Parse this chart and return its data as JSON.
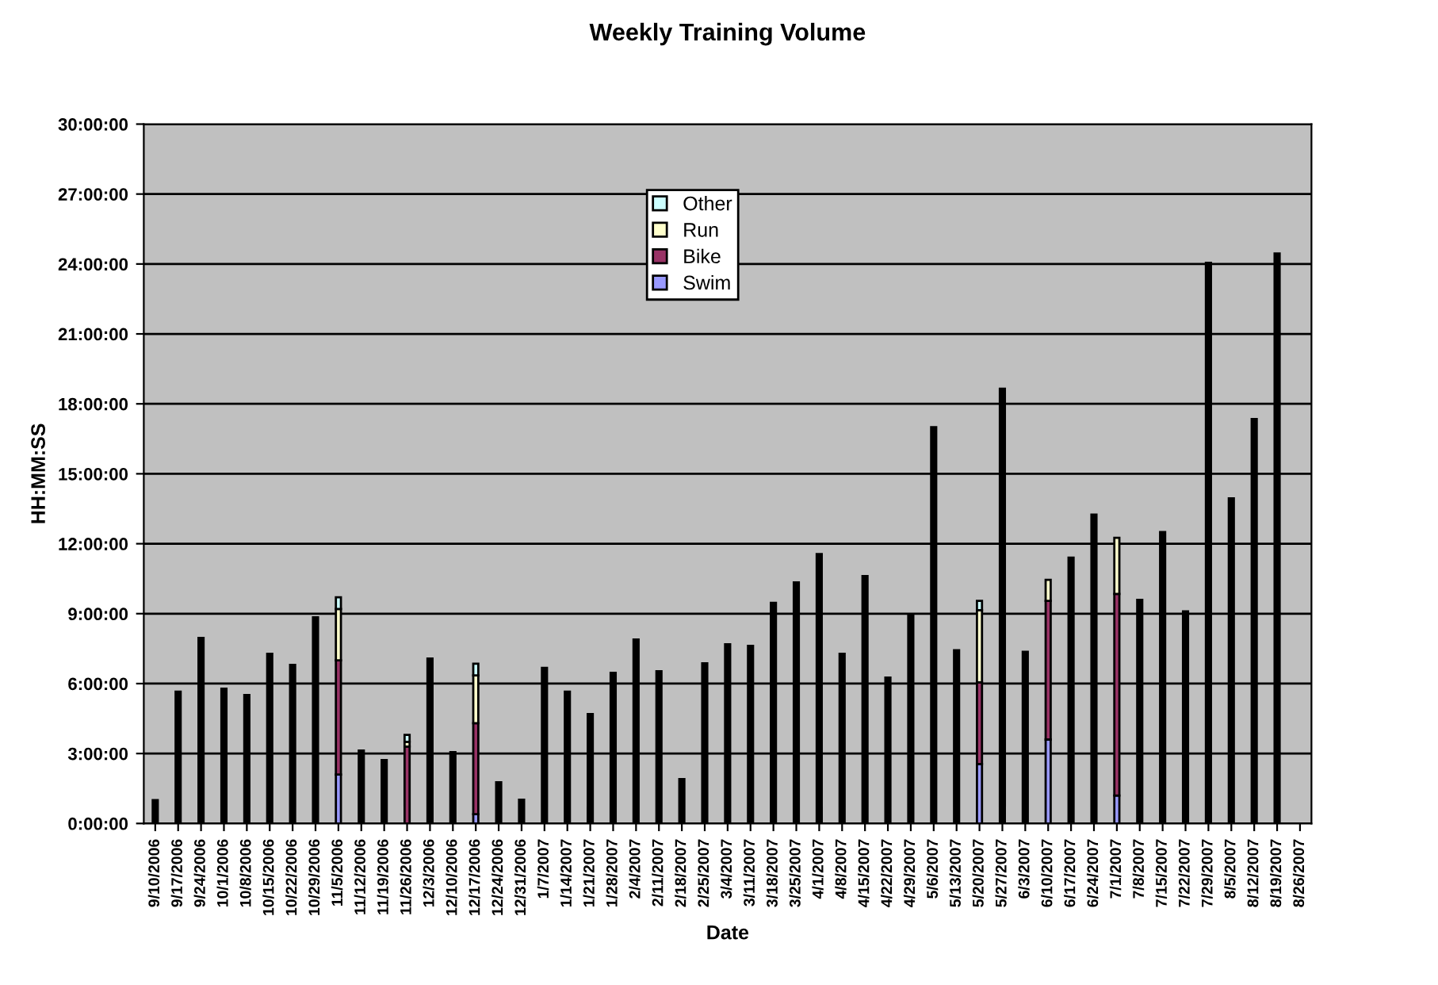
{
  "chart_data": {
    "type": "bar",
    "title": "Weekly Training Volume",
    "xlabel": "Date",
    "ylabel": "HH:MM:SS",
    "categories": [
      "9/10/2006",
      "9/17/2006",
      "9/24/2006",
      "10/1/2006",
      "10/8/2006",
      "10/15/2006",
      "10/22/2006",
      "10/29/2006",
      "11/5/2006",
      "11/12/2006",
      "11/19/2006",
      "11/26/2006",
      "12/3/2006",
      "12/10/2006",
      "12/17/2006",
      "12/24/2006",
      "12/31/2006",
      "1/7/2007",
      "1/14/2007",
      "1/21/2007",
      "1/28/2007",
      "2/4/2007",
      "2/11/2007",
      "2/18/2007",
      "2/25/2007",
      "3/4/2007",
      "3/11/2007",
      "3/18/2007",
      "3/25/2007",
      "4/1/2007",
      "4/8/2007",
      "4/15/2007",
      "4/22/2007",
      "4/29/2007",
      "5/6/2007",
      "5/13/2007",
      "5/20/2007",
      "5/27/2007",
      "6/3/2007",
      "6/10/2007",
      "6/17/2007",
      "6/24/2007",
      "7/1/2007",
      "7/8/2007",
      "7/15/2007",
      "7/22/2007",
      "7/29/2007",
      "8/5/2007",
      "8/12/2007",
      "8/19/2007",
      "8/26/2007"
    ],
    "stacked": true,
    "series": [
      {
        "name": "Swim",
        "color": "#9999ff",
        "values": [
          null,
          null,
          null,
          null,
          null,
          null,
          null,
          null,
          2.1,
          null,
          null,
          null,
          null,
          null,
          0.4,
          null,
          null,
          null,
          null,
          null,
          null,
          null,
          null,
          null,
          null,
          null,
          null,
          null,
          null,
          null,
          null,
          null,
          null,
          null,
          null,
          null,
          2.55,
          null,
          null,
          3.6,
          null,
          null,
          1.2,
          null,
          null,
          null,
          null,
          null,
          null,
          null,
          null
        ]
      },
      {
        "name": "Bike",
        "color": "#993366",
        "values": [
          null,
          null,
          null,
          null,
          null,
          null,
          null,
          null,
          4.9,
          null,
          null,
          3.3,
          null,
          null,
          3.9,
          null,
          null,
          null,
          null,
          null,
          null,
          null,
          null,
          null,
          null,
          null,
          null,
          null,
          null,
          null,
          null,
          null,
          null,
          null,
          null,
          null,
          3.5,
          null,
          null,
          5.95,
          null,
          null,
          8.65,
          null,
          null,
          null,
          null,
          null,
          null,
          null,
          null
        ]
      },
      {
        "name": "Run",
        "color": "#ffffcc",
        "values": [
          null,
          null,
          null,
          null,
          null,
          null,
          null,
          null,
          2.2,
          null,
          null,
          0.2,
          null,
          null,
          2.05,
          null,
          null,
          null,
          null,
          null,
          null,
          null,
          null,
          null,
          null,
          null,
          null,
          null,
          null,
          null,
          null,
          null,
          null,
          null,
          null,
          null,
          3.1,
          null,
          null,
          0.9,
          null,
          null,
          2.4,
          null,
          null,
          null,
          null,
          null,
          null,
          null,
          null
        ]
      },
      {
        "name": "Other",
        "color": "#ccffff",
        "values": [
          null,
          null,
          null,
          null,
          null,
          null,
          null,
          null,
          0.5,
          null,
          null,
          0.3,
          null,
          null,
          0.5,
          null,
          null,
          null,
          null,
          null,
          null,
          null,
          null,
          null,
          null,
          null,
          null,
          null,
          null,
          null,
          null,
          null,
          null,
          null,
          null,
          null,
          0.4,
          null,
          null,
          null,
          null,
          null,
          null,
          null,
          null,
          null,
          null,
          null,
          null,
          null,
          null
        ]
      },
      {
        "color": "#000000",
        "values": [
          1.0,
          5.65,
          7.96,
          5.78,
          5.51,
          7.28,
          6.8,
          8.84,
          null,
          3.13,
          2.72,
          null,
          7.07,
          3.06,
          null,
          1.77,
          1.02,
          6.67,
          5.65,
          4.69,
          6.46,
          7.89,
          6.53,
          1.9,
          6.87,
          7.69,
          7.62,
          9.46,
          10.34,
          11.56,
          7.28,
          10.61,
          6.26,
          8.93,
          17.0,
          7.43,
          null,
          18.65,
          7.36,
          null,
          11.4,
          13.25,
          null,
          9.59,
          12.5,
          9.1,
          24.05,
          13.95,
          17.35,
          24.45,
          null
        ]
      }
    ],
    "ylim": [
      0,
      30
    ],
    "yticks": [
      {
        "value": 0,
        "label": "0:00:00"
      },
      {
        "value": 3,
        "label": "3:00:00"
      },
      {
        "value": 6,
        "label": "6:00:00"
      },
      {
        "value": 9,
        "label": "9:00:00"
      },
      {
        "value": 12,
        "label": "12:00:00"
      },
      {
        "value": 15,
        "label": "15:00:00"
      },
      {
        "value": 18,
        "label": "18:00:00"
      },
      {
        "value": 21,
        "label": "21:00:00"
      },
      {
        "value": 24,
        "label": "24:00:00"
      },
      {
        "value": 27,
        "label": "27:00:00"
      },
      {
        "value": 30,
        "label": "30:00:00"
      }
    ],
    "grid": "y",
    "legend": "top"
  }
}
